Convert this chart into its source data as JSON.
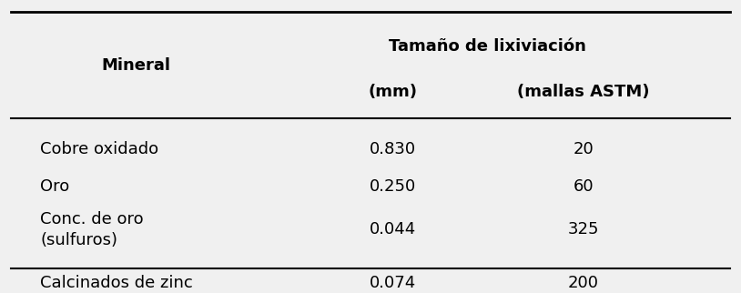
{
  "col1_header": "Mineral",
  "col2_header_top": "Tamaño de lixiviación",
  "col2_header_mid": "(mm)",
  "col3_header_mid": "(mallas ASTM)",
  "rows": [
    {
      "mineral": "Cobre oxidado",
      "mm": "0.830",
      "mallas": "20"
    },
    {
      "mineral": "Oro",
      "mm": "0.250",
      "mallas": "60"
    },
    {
      "mineral": "Conc. de oro\n(sulfuros)",
      "mm": "0.044",
      "mallas": "325"
    },
    {
      "mineral": "Calcinados de zinc",
      "mm": "0.074",
      "mallas": "200"
    }
  ],
  "bg_color": "#f0f0f0",
  "text_color": "#000000",
  "header_fontsize": 13,
  "cell_fontsize": 13
}
